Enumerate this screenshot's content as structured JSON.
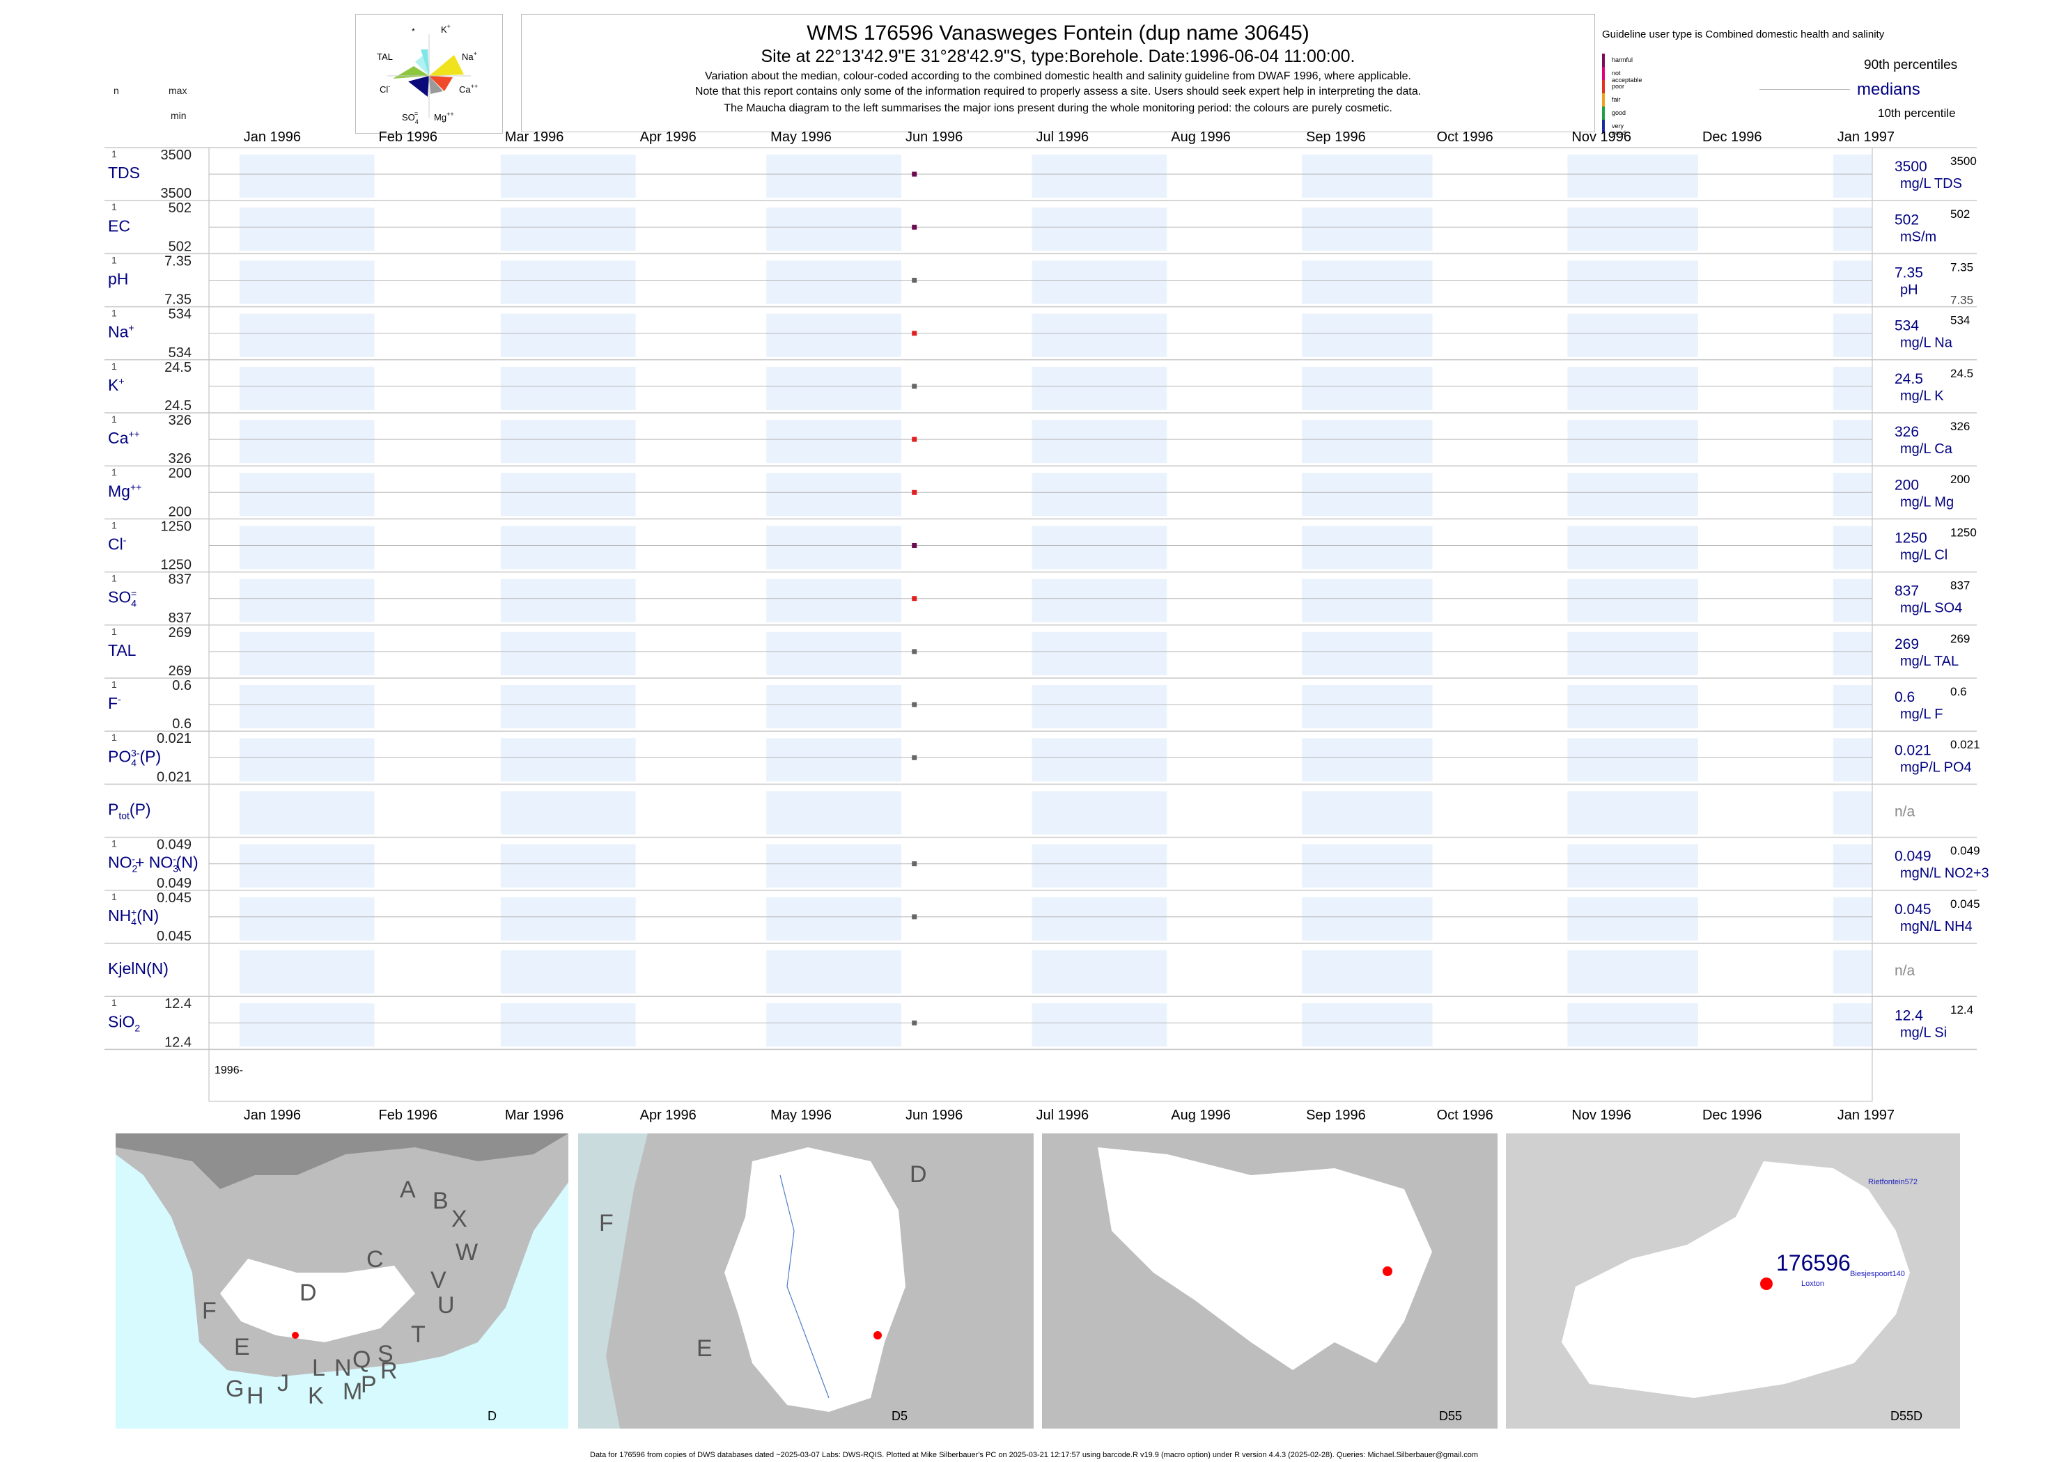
{
  "header": {
    "title": "WMS 176596  Vanasweges Fontein (dup name 30645)",
    "subtitle": "Site at 22°13'42.9\"E 31°28'42.9\"S, type:Borehole. Date:1996-06-04 11:00:00.",
    "notes": [
      "Variation about the median,  colour-coded according to the combined domestic health and salinity guideline from DWAF 1996, where applicable.",
      "Note that this report contains only some of the information required to properly assess a site. Users should seek expert help in interpreting the data.",
      "The Maucha diagram to the left summarises the major ions present during the whole monitoring period: the colours are purely cosmetic."
    ]
  },
  "maucha": {
    "labels": {
      "star": "*",
      "k": "K",
      "k_sup": "+",
      "tal": "TAL",
      "na": "Na",
      "na_sup": "+",
      "cl": "Cl",
      "cl_sup": "-",
      "ca": "Ca",
      "ca_sup": "++",
      "so4": "SO",
      "so4_sub": "4",
      "so4_sup": "=",
      "mg": "Mg",
      "mg_sup": "++"
    },
    "colors": {
      "k": "#7fe7e7",
      "na": "#f0e21c",
      "ca": "#f04a2a",
      "mg": "#9a9a9a",
      "so4": "#0a0a78",
      "cl": "#8dc63f",
      "tal": "#cfcfcf"
    }
  },
  "legend": {
    "guideline": "Guideline user type is Combined domestic health and salinity",
    "classes": [
      {
        "label": "harmful",
        "color": "#7b0a5a"
      },
      {
        "label": "not acceptable",
        "color": "#e0007a"
      },
      {
        "label": "poor",
        "color": "#e03020"
      },
      {
        "label": "fair",
        "color": "#f0a020"
      },
      {
        "label": "good",
        "color": "#20a040"
      },
      {
        "label": "very good",
        "color": "#1a2aa0"
      }
    ],
    "p90": "90th percentiles",
    "medians": "medians",
    "p10": "10th percentile"
  },
  "left_header": {
    "n": "n",
    "max": "max",
    "min": "min"
  },
  "axis": {
    "months": [
      "Jan 1996",
      "Feb 1996",
      "Mar 1996",
      "Apr 1996",
      "May 1996",
      "Jun 1996",
      "Jul 1996",
      "Aug 1996",
      "Sep 1996",
      "Oct 1996",
      "Nov 1996",
      "Dec 1996",
      "Jan 1997"
    ],
    "year_label": "1996-"
  },
  "chart_data": {
    "type": "scatter",
    "x_unit": "date",
    "sample_date": "1996-06-04",
    "xlim": [
      "1995-12-25",
      "1997-01-10"
    ],
    "series": [
      {
        "label": "TDS",
        "n": "1",
        "max": "3500",
        "min": "3500",
        "median": "3500",
        "p90": "3500",
        "p10": "",
        "unit": "mg/L TDS",
        "value": 3500,
        "color": "#6a0a50"
      },
      {
        "label": "EC",
        "n": "1",
        "max": "502",
        "min": "502",
        "median": "502",
        "p90": "502",
        "p10": "",
        "unit": "mS/m",
        "value": 502,
        "color": "#6a0a50"
      },
      {
        "label": "pH",
        "n": "1",
        "max": "7.35",
        "min": "7.35",
        "median": "7.35",
        "p90": "7.35",
        "p10": "7.35",
        "unit": "pH",
        "value": 7.35,
        "color": "#666666"
      },
      {
        "label": "Na",
        "sup": "+",
        "n": "1",
        "max": "534",
        "min": "534",
        "median": "534",
        "p90": "534",
        "p10": "",
        "unit": "mg/L Na",
        "value": 534,
        "color": "#e02020"
      },
      {
        "label": "K",
        "sup": "+",
        "n": "1",
        "max": "24.5",
        "min": "24.5",
        "median": "24.5",
        "p90": "24.5",
        "p10": "",
        "unit": "mg/L K",
        "value": 24.5,
        "color": "#666666"
      },
      {
        "label": "Ca",
        "sup": "++",
        "n": "1",
        "max": "326",
        "min": "326",
        "median": "326",
        "p90": "326",
        "p10": "",
        "unit": "mg/L Ca",
        "value": 326,
        "color": "#e02020"
      },
      {
        "label": "Mg",
        "sup": "++",
        "n": "1",
        "max": "200",
        "min": "200",
        "median": "200",
        "p90": "200",
        "p10": "",
        "unit": "mg/L Mg",
        "value": 200,
        "color": "#e02020"
      },
      {
        "label": "Cl",
        "sup": "-",
        "n": "1",
        "max": "1250",
        "min": "1250",
        "median": "1250",
        "p90": "1250",
        "p10": "",
        "unit": "mg/L Cl",
        "value": 1250,
        "color": "#6a0a50"
      },
      {
        "label": "SO",
        "sub": "4",
        "sup": "=",
        "n": "1",
        "max": "837",
        "min": "837",
        "median": "837",
        "p90": "837",
        "p10": "",
        "unit": "mg/L SO4",
        "value": 837,
        "color": "#e02020"
      },
      {
        "label": "TAL",
        "n": "1",
        "max": "269",
        "min": "269",
        "median": "269",
        "p90": "269",
        "p10": "",
        "unit": "mg/L TAL",
        "value": 269,
        "color": "#666666"
      },
      {
        "label": "F",
        "sup": "-",
        "n": "1",
        "max": "0.6",
        "min": "0.6",
        "median": "0.6",
        "p90": "0.6",
        "p10": "",
        "unit": "mg/L F",
        "value": 0.6,
        "color": "#666666"
      },
      {
        "label": "PO",
        "sub": "4",
        "sup": "3-",
        "suffix": "(P)",
        "n": "1",
        "max": "0.021",
        "min": "0.021",
        "median": "0.021",
        "p90": "0.021",
        "p10": "",
        "unit": "mgP/L PO4",
        "value": 0.021,
        "color": "#666666"
      },
      {
        "label": "P",
        "sub": "tot",
        "suffix": "(P)",
        "n": "",
        "max": "",
        "min": "",
        "median": "n/a",
        "na": true
      },
      {
        "label": "NO",
        "sub": "2",
        "sup": "-",
        "mid": "+ NO",
        "sub2": "3",
        "sup2": "-",
        "suffix": "(N)",
        "n": "1",
        "max": "0.049",
        "min": "0.049",
        "median": "0.049",
        "p90": "0.049",
        "p10": "",
        "unit": "mgN/L NO2+3",
        "value": 0.049,
        "color": "#666666"
      },
      {
        "label": "NH",
        "sub": "4",
        "sup": "+",
        "suffix": "(N)",
        "n": "1",
        "max": "0.045",
        "min": "0.045",
        "median": "0.045",
        "p90": "0.045",
        "p10": "",
        "unit": "mgN/L NH4",
        "value": 0.045,
        "color": "#666666"
      },
      {
        "label": "KjelN(N)",
        "n": "",
        "max": "",
        "min": "",
        "median": "n/a",
        "na": true
      },
      {
        "label": "SiO",
        "sub": "2",
        "n": "1",
        "max": "12.4",
        "min": "12.4",
        "median": "12.4",
        "p90": "12.4",
        "p10": "",
        "unit": "mg/L Si",
        "value": 12.4,
        "color": "#666666"
      }
    ]
  },
  "maps": {
    "map1": {
      "corner": "D",
      "letters": [
        "A",
        "B",
        "X",
        "C",
        "W",
        "V",
        "U",
        "T",
        "D",
        "F",
        "E",
        "G",
        "H",
        "J",
        "K",
        "L",
        "M",
        "N",
        "P",
        "Q",
        "R",
        "S"
      ]
    },
    "map2": {
      "corner": "D5",
      "letters": [
        "D",
        "F",
        "E"
      ]
    },
    "map3": {
      "corner": "D55"
    },
    "map4": {
      "corner": "D55D",
      "site": "176596",
      "places": [
        "Rietfontein572",
        "Biesjespoort140",
        "Loxton"
      ]
    }
  },
  "footer": "Data for 176596 from copies of DWS databases dated ~2025-03-07 Labs: DWS-RQIS. Plotted at Mike Silberbauer's PC on 2025-03-21 12:17:57 using barcode.R v19.9 (macro option) under R version 4.4.3 (2025-02-28). Queries: Michael.Silberbauer@gmail.com"
}
